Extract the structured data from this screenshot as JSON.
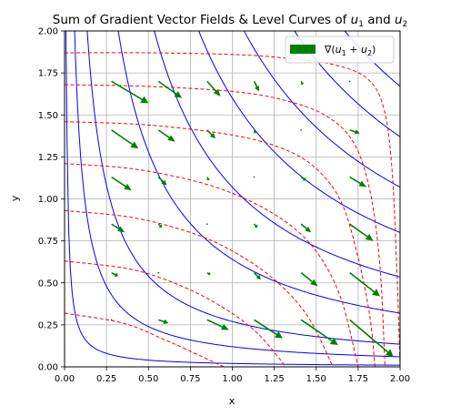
{
  "chart_data": {
    "type": "quiver-contour",
    "title": "Sum of Gradient Vector Fields & Level Curves of u₁ and u₂",
    "title_main": "Sum of Gradient Vector Fields & Level Curves of ",
    "title_var1": "u",
    "title_sub1": "1",
    "title_and": " and ",
    "title_var2": "u",
    "title_sub2": "2",
    "xlabel": "x",
    "ylabel": "y",
    "xlim": [
      0,
      2
    ],
    "ylim": [
      0,
      2
    ],
    "xticks": [
      "0.00",
      "0.25",
      "0.50",
      "0.75",
      "1.00",
      "1.25",
      "1.50",
      "1.75",
      "2.00"
    ],
    "yticks": [
      "0.00",
      "0.25",
      "0.50",
      "0.75",
      "1.00",
      "1.25",
      "1.50",
      "1.75",
      "2.00"
    ],
    "grid": true,
    "legend": {
      "placement": "top-right",
      "label": "∇(u₁ + u₂)",
      "label_prefix": "∇(",
      "label_var1": "u",
      "label_sub1": "1",
      "label_plus": " + ",
      "label_var2": "u",
      "label_sub2": "2",
      "label_suffix": ")"
    },
    "colors": {
      "arrows": "#008000",
      "u1_contours": "#0000ff",
      "u2_contours": "#ff0000",
      "grid": "#b0b0b0"
    },
    "u1_level_curves": {
      "style": "solid",
      "note_levels": "hyperbola-like curves x*y = c",
      "levels": [
        0.02,
        0.12,
        0.27,
        0.64,
        1.07,
        1.6,
        2.14,
        2.74,
        3.34
      ]
    },
    "u2_level_curves": {
      "style": "dashed",
      "curves": [
        [
          [
            0,
            1.87
          ],
          [
            0.5,
            1.87
          ],
          [
            1.0,
            1.86
          ],
          [
            1.3,
            1.84
          ],
          [
            1.6,
            1.8
          ],
          [
            1.8,
            1.72
          ],
          [
            1.9,
            1.55
          ],
          [
            1.95,
            1.2
          ],
          [
            1.98,
            0.6
          ],
          [
            2.0,
            0
          ]
        ],
        [
          [
            0,
            1.68
          ],
          [
            0.5,
            1.67
          ],
          [
            1.0,
            1.64
          ],
          [
            1.3,
            1.59
          ],
          [
            1.55,
            1.5
          ],
          [
            1.72,
            1.34
          ],
          [
            1.82,
            1.05
          ],
          [
            1.88,
            0.6
          ],
          [
            1.91,
            0
          ]
        ],
        [
          [
            0,
            1.46
          ],
          [
            0.5,
            1.44
          ],
          [
            1.0,
            1.38
          ],
          [
            1.3,
            1.3
          ],
          [
            1.5,
            1.18
          ],
          [
            1.65,
            0.98
          ],
          [
            1.75,
            0.65
          ],
          [
            1.82,
            0.3
          ],
          [
            1.85,
            0
          ]
        ],
        [
          [
            0,
            1.21
          ],
          [
            0.4,
            1.18
          ],
          [
            0.8,
            1.1
          ],
          [
            1.1,
            0.99
          ],
          [
            1.35,
            0.84
          ],
          [
            1.52,
            0.66
          ],
          [
            1.65,
            0.4
          ],
          [
            1.75,
            0
          ]
        ],
        [
          [
            0,
            0.93
          ],
          [
            0.4,
            0.89
          ],
          [
            0.75,
            0.8
          ],
          [
            1.0,
            0.69
          ],
          [
            1.25,
            0.52
          ],
          [
            1.45,
            0.3
          ],
          [
            1.6,
            0
          ]
        ],
        [
          [
            0,
            0.63
          ],
          [
            0.4,
            0.58
          ],
          [
            0.7,
            0.48
          ],
          [
            0.95,
            0.35
          ],
          [
            1.15,
            0.2
          ],
          [
            1.32,
            0
          ]
        ],
        [
          [
            0,
            0.32
          ],
          [
            0.35,
            0.26
          ],
          [
            0.6,
            0.16
          ],
          [
            0.8,
            0.07
          ],
          [
            0.95,
            0
          ]
        ]
      ]
    },
    "vectors": {
      "xs": [
        0.28,
        0.56,
        0.85,
        1.13,
        1.41,
        1.7
      ],
      "ys": [
        0.28,
        0.56,
        0.85,
        1.13,
        1.41,
        1.7
      ],
      "u": [
        [
          0.01,
          0.06,
          0.13,
          0.17,
          0.22,
          0.26
        ],
        [
          0.04,
          0.01,
          0.02,
          0.04,
          0.1,
          0.18
        ],
        [
          0.08,
          0.02,
          0.0,
          0.02,
          0.06,
          0.14
        ],
        [
          0.12,
          0.05,
          0.01,
          0.0,
          0.03,
          0.1
        ],
        [
          0.16,
          0.1,
          0.05,
          0.01,
          0.01,
          0.06
        ],
        [
          0.22,
          0.14,
          0.08,
          0.03,
          0.01,
          0.01
        ]
      ],
      "v": [
        [
          0.0,
          -0.02,
          -0.06,
          -0.11,
          -0.15,
          -0.22
        ],
        [
          -0.02,
          0.0,
          -0.01,
          -0.04,
          -0.08,
          -0.14
        ],
        [
          -0.05,
          -0.02,
          0.0,
          -0.02,
          -0.05,
          -0.1
        ],
        [
          -0.08,
          -0.05,
          -0.02,
          0.0,
          -0.02,
          -0.06
        ],
        [
          -0.11,
          -0.07,
          -0.05,
          -0.02,
          0.0,
          -0.02
        ],
        [
          -0.13,
          -0.1,
          -0.09,
          -0.06,
          -0.02,
          0.0
        ]
      ]
    }
  }
}
